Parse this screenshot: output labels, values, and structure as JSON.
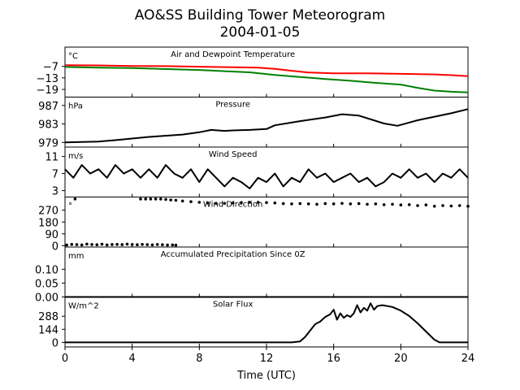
{
  "title": "AO&SS Building Tower Meteorogram",
  "subtitle": "2004-01-05",
  "chart_data": {
    "type": "line",
    "xlabel": "Time (UTC)",
    "xlim": [
      0,
      24
    ],
    "xticks": [
      0,
      4,
      8,
      12,
      16,
      20,
      24
    ],
    "panels": [
      {
        "id": "temperature",
        "title": "Air and Dewpoint Temperature",
        "unit": "°C",
        "ylim": [
          -23,
          3
        ],
        "yticks": [
          -7,
          -13,
          -19
        ],
        "ytick_labels": [
          "−7",
          "−13",
          "−19"
        ],
        "series": [
          {
            "color": "#ff0000",
            "kind": "line",
            "x": [
              0,
              2,
              4,
              6,
              8,
              10,
              11.5,
              12.5,
              13.5,
              14.5,
              16,
              18,
              20,
              22,
              23,
              24
            ],
            "y": [
              -6.4,
              -6.5,
              -6.8,
              -6.9,
              -7.2,
              -7.5,
              -7.7,
              -8.3,
              -9.3,
              -10.2,
              -10.6,
              -10.6,
              -10.9,
              -11.2,
              -11.6,
              -12.1
            ]
          },
          {
            "color": "#008000",
            "kind": "line",
            "x": [
              0,
              2,
              4,
              6,
              8,
              9.5,
              11,
              12.5,
              14,
              15.5,
              17,
              18.5,
              20,
              21,
              22,
              23,
              24
            ],
            "y": [
              -7.3,
              -7.7,
              -7.9,
              -8.4,
              -8.9,
              -9.5,
              -10.1,
              -11.5,
              -12.5,
              -13.6,
              -14.5,
              -15.6,
              -16.5,
              -18.2,
              -19.6,
              -20.2,
              -20.6
            ]
          }
        ]
      },
      {
        "id": "pressure",
        "title": "Pressure",
        "unit": "hPa",
        "ylim": [
          978,
          988.8
        ],
        "yticks": [
          979,
          983,
          987
        ],
        "series": [
          {
            "color": "#000000",
            "kind": "line",
            "x": [
              0,
              2,
              3,
              5,
              7,
              8,
              8.7,
              9.5,
              10,
              11,
              12,
              12.5,
              14,
              15.5,
              16.5,
              17.5,
              19,
              19.8,
              21,
              23,
              24
            ],
            "y": [
              979.0,
              979.2,
              979.5,
              980.2,
              980.7,
              981.2,
              981.7,
              981.5,
              981.6,
              981.7,
              981.9,
              982.7,
              983.6,
              984.4,
              985.1,
              984.8,
              983.1,
              982.6,
              983.8,
              985.3,
              986.2
            ]
          }
        ]
      },
      {
        "id": "wind_speed",
        "title": "Wind Speed",
        "unit": "m/s",
        "ylim": [
          1.5,
          13.2
        ],
        "yticks": [
          3,
          7,
          11
        ],
        "series": [
          {
            "color": "#000000",
            "kind": "line",
            "x": [
              0,
              0.5,
              1,
              1.5,
              2,
              2.5,
              3,
              3.5,
              4,
              4.5,
              5,
              5.5,
              6,
              6.5,
              7,
              7.5,
              8,
              8.5,
              9,
              9.5,
              10,
              10.5,
              11,
              11.5,
              12,
              12.5,
              13,
              13.5,
              14,
              14.5,
              15,
              15.5,
              16,
              16.5,
              17,
              17.5,
              18,
              18.5,
              19,
              19.5,
              20,
              20.5,
              21,
              21.5,
              22,
              22.5,
              23,
              23.5,
              24
            ],
            "y": [
              8,
              6,
              9,
              7,
              8,
              6,
              9,
              7,
              8,
              6,
              8,
              6,
              9,
              7,
              6,
              8,
              5,
              8,
              6,
              4,
              6,
              5,
              3.5,
              6,
              5,
              7,
              4,
              6,
              5,
              8,
              6,
              7,
              5,
              6,
              7,
              5,
              6,
              4,
              5,
              7,
              6,
              8,
              6,
              7,
              5,
              7,
              6,
              8,
              6
            ]
          }
        ]
      },
      {
        "id": "wind_direction",
        "title": "Wind Direction",
        "unit": "°",
        "ylim": [
          -10,
          370
        ],
        "yticks": [
          0,
          90,
          180,
          270
        ],
        "series": [
          {
            "color": "#000000",
            "kind": "scatter",
            "x": [
              0.1,
              0.4,
              0.7,
              1.0,
              1.3,
              1.6,
              1.9,
              2.2,
              2.5,
              2.8,
              3.1,
              3.4,
              3.7,
              4.0,
              4.3,
              4.6,
              4.9,
              5.2,
              5.5,
              5.8,
              6.1,
              6.4,
              6.6
            ],
            "y": [
              5,
              10,
              8,
              6,
              12,
              9,
              7,
              11,
              6,
              9,
              10,
              8,
              12,
              9,
              7,
              10,
              8,
              6,
              9,
              7,
              5,
              6,
              4
            ]
          },
          {
            "color": "#000000",
            "kind": "scatter",
            "x": [
              0.6,
              4.5,
              4.8,
              5.1,
              5.4,
              5.7,
              6.0,
              6.3,
              6.6,
              7.0,
              7.5,
              8.0,
              8.5,
              9.0,
              9.5,
              10.0,
              10.5,
              11.0,
              11.5,
              12.0,
              12.5,
              13.0,
              13.5,
              14.0,
              14.5,
              15.0,
              15.5,
              16.0,
              16.5,
              17.0,
              17.5,
              18.0,
              18.5,
              19.0,
              19.5,
              20.0,
              20.5,
              21.0,
              21.5,
              22.0,
              22.5,
              23.0,
              23.5,
              24.0
            ],
            "y": [
              355,
              355,
              355,
              355,
              355,
              355,
              352,
              348,
              345,
              340,
              335,
              330,
              325,
              322,
              322,
              325,
              328,
              330,
              330,
              328,
              325,
              320,
              318,
              320,
              318,
              315,
              320,
              318,
              322,
              318,
              320,
              315,
              318,
              312,
              315,
              310,
              312,
              305,
              310,
              300,
              305,
              302,
              305,
              300
            ]
          }
        ]
      },
      {
        "id": "precipitation",
        "title": "Accumulated Precipitation Since 0Z",
        "unit": "mm",
        "ylim": [
          0,
          0.18
        ],
        "yticks": [
          0.0,
          0.05,
          0.1
        ],
        "ytick_labels": [
          "0.00",
          "0.05",
          "0.10"
        ],
        "series": [
          {
            "color": "#000000",
            "kind": "line",
            "x": [
              0,
              24
            ],
            "y": [
              0,
              0
            ]
          }
        ]
      },
      {
        "id": "solar_flux",
        "title": "Solar Flux",
        "unit": "W/m^2",
        "ylim": [
          -50,
          500
        ],
        "yticks": [
          0,
          144,
          288
        ],
        "series": [
          {
            "color": "#000000",
            "kind": "line",
            "x": [
              0,
              13.5,
              14,
              14.3,
              14.6,
              14.9,
              15.2,
              15.5,
              15.8,
              16.0,
              16.2,
              16.4,
              16.6,
              16.8,
              17.0,
              17.2,
              17.4,
              17.6,
              17.8,
              18.0,
              18.2,
              18.4,
              18.6,
              18.9,
              19.5,
              20.0,
              20.5,
              21.0,
              21.5,
              22.0,
              22.3,
              23,
              24
            ],
            "y": [
              0,
              0,
              10,
              60,
              130,
              200,
              230,
              280,
              310,
              360,
              250,
              320,
              270,
              300,
              280,
              320,
              410,
              330,
              380,
              350,
              430,
              360,
              400,
              410,
              390,
              350,
              290,
              210,
              120,
              30,
              0,
              0,
              0
            ]
          }
        ]
      }
    ]
  }
}
